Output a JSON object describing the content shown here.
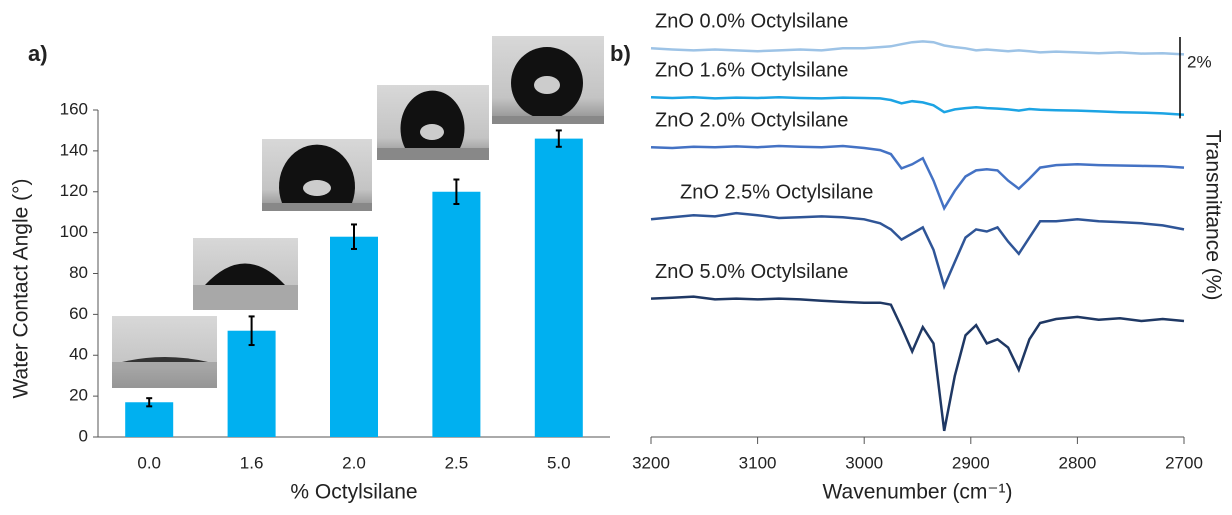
{
  "chart_data": [
    {
      "type": "bar",
      "panel_label": "a)",
      "xlabel": "% Octylsilane",
      "ylabel": "Water Contact Angle (°)",
      "categories": [
        "0.0",
        "1.6",
        "2.0",
        "2.5",
        "5.0"
      ],
      "values": [
        17,
        52,
        98,
        120,
        146
      ],
      "errors": [
        2,
        7,
        6,
        6,
        4
      ],
      "color": "#00b0f0",
      "ylim": [
        0,
        160
      ],
      "yticks": [
        0,
        20,
        40,
        60,
        80,
        100,
        120,
        140,
        160
      ]
    },
    {
      "type": "line",
      "panel_label": "b)",
      "xlabel": "Wavenumber (cm⁻¹)",
      "ylabel": "Transmittance (%)",
      "scale_bar": {
        "value": 2,
        "label": "2%"
      },
      "xlim": [
        3200,
        2700
      ],
      "xticks": [
        3200,
        3100,
        3000,
        2900,
        2800,
        2700
      ],
      "ylim": [
        0,
        10
      ],
      "x": [
        3200,
        3180,
        3160,
        3140,
        3120,
        3100,
        3080,
        3060,
        3040,
        3020,
        3000,
        2985,
        2975,
        2965,
        2955,
        2945,
        2935,
        2925,
        2915,
        2905,
        2895,
        2885,
        2875,
        2865,
        2855,
        2845,
        2835,
        2820,
        2800,
        2780,
        2760,
        2740,
        2720,
        2700
      ],
      "series": [
        {
          "name": "ZnO 0.0% Octylsilane",
          "color": "#9dc3e6",
          "values": [
            9.55,
            9.52,
            9.5,
            9.52,
            9.5,
            9.48,
            9.5,
            9.52,
            9.5,
            9.55,
            9.55,
            9.58,
            9.6,
            9.65,
            9.7,
            9.72,
            9.7,
            9.62,
            9.58,
            9.55,
            9.5,
            9.52,
            9.5,
            9.48,
            9.5,
            9.48,
            9.45,
            9.47,
            9.45,
            9.43,
            9.45,
            9.42,
            9.43,
            9.4
          ]
        },
        {
          "name": "ZnO 1.6% Octylsilane",
          "color": "#1ca4e4",
          "values": [
            8.35,
            8.33,
            8.35,
            8.32,
            8.34,
            8.33,
            8.35,
            8.33,
            8.32,
            8.34,
            8.33,
            8.32,
            8.28,
            8.2,
            8.25,
            8.22,
            8.15,
            7.98,
            8.05,
            8.08,
            8.1,
            8.08,
            8.07,
            8.05,
            8.02,
            8.06,
            8.04,
            8.03,
            8.02,
            8.0,
            7.98,
            7.97,
            7.95,
            7.92
          ]
        },
        {
          "name": "ZnO 2.0% Octylsilane",
          "color": "#4472c4",
          "values": [
            7.12,
            7.1,
            7.13,
            7.12,
            7.14,
            7.12,
            7.15,
            7.13,
            7.12,
            7.15,
            7.1,
            7.05,
            6.95,
            6.6,
            6.7,
            6.85,
            6.3,
            5.62,
            6.05,
            6.4,
            6.55,
            6.58,
            6.55,
            6.3,
            6.1,
            6.35,
            6.62,
            6.68,
            6.7,
            6.68,
            6.67,
            6.66,
            6.65,
            6.62
          ]
        },
        {
          "name": "ZnO 2.5% Octylsilane",
          "color": "#2f5597",
          "values": [
            5.35,
            5.4,
            5.45,
            5.42,
            5.5,
            5.45,
            5.38,
            5.4,
            5.42,
            5.4,
            5.35,
            5.25,
            5.1,
            4.85,
            5.0,
            5.15,
            4.6,
            3.7,
            4.3,
            4.9,
            5.1,
            5.05,
            5.15,
            4.8,
            4.5,
            4.9,
            5.3,
            5.3,
            5.35,
            5.3,
            5.28,
            5.25,
            5.2,
            5.1
          ]
        },
        {
          "name": "ZnO 5.0% Octylsilane",
          "color": "#1f3864",
          "values": [
            3.4,
            3.42,
            3.45,
            3.38,
            3.4,
            3.38,
            3.4,
            3.38,
            3.35,
            3.32,
            3.3,
            3.3,
            3.25,
            2.7,
            2.1,
            2.7,
            2.3,
            0.15,
            1.5,
            2.5,
            2.75,
            2.3,
            2.4,
            2.2,
            1.65,
            2.4,
            2.8,
            2.9,
            2.95,
            2.88,
            2.92,
            2.85,
            2.9,
            2.85
          ]
        }
      ]
    }
  ]
}
